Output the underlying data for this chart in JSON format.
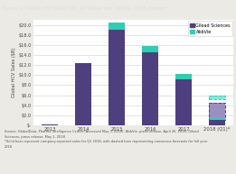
{
  "title": "Figure 1: Global HCV Sales ($B) for Gilead and AbbVie, 2013–present",
  "ylabel": "Global HCV Sales ($B)",
  "categories": [
    "2013",
    "2014",
    "2015",
    "2016",
    "2017",
    "2018 (Q1)*"
  ],
  "gilead_solid": [
    0.14,
    12.4,
    19.1,
    14.6,
    9.1,
    1.0
  ],
  "gilead_dashed": [
    0,
    0,
    0,
    0,
    0,
    3.5
  ],
  "abbvie_solid": [
    0,
    0,
    1.4,
    1.3,
    1.1,
    0.7
  ],
  "abbvie_dashed": [
    0,
    0,
    0,
    0,
    0,
    0.8
  ],
  "yticks": [
    0,
    2.0,
    4.0,
    6.0,
    8.0,
    10.0,
    12.0,
    14.0,
    16.0,
    18.0,
    20.0
  ],
  "ytick_labels": [
    "$-",
    "$2.0",
    "$4.0",
    "$6.0",
    "$8.0",
    "$10.0",
    "$12.0",
    "$14.0",
    "$16.0",
    "$18.0",
    "$20.0"
  ],
  "gilead_color": "#4e3f7e",
  "abbvie_color": "#2dcfb3",
  "gilead_dashed_color": "#9b8fc2",
  "abbvie_dashed_color": "#80e8d8",
  "bg_color": "#eceae5",
  "plot_bg_color": "#ffffff",
  "title_bg_color": "#3a3a4a",
  "title_text_color": "#e0ddd8",
  "footer_bg_color": "#eceae5",
  "footer_text_color": "#555555",
  "bar_width": 0.5,
  "legend_labels": [
    "Gilead Sciences",
    "AbbVie"
  ],
  "footer_text": "Source: GlobalData, Pharma Intelligence Center (Accessed May 3, 2018); AbbVie, press release, April 26, 2018; Gilead\nSciences, press release, May 1, 2018\n*Solid bars represent company-reported sales for Q1 2018, with dashed bars representing consensus forecasts for full year\n2018"
}
